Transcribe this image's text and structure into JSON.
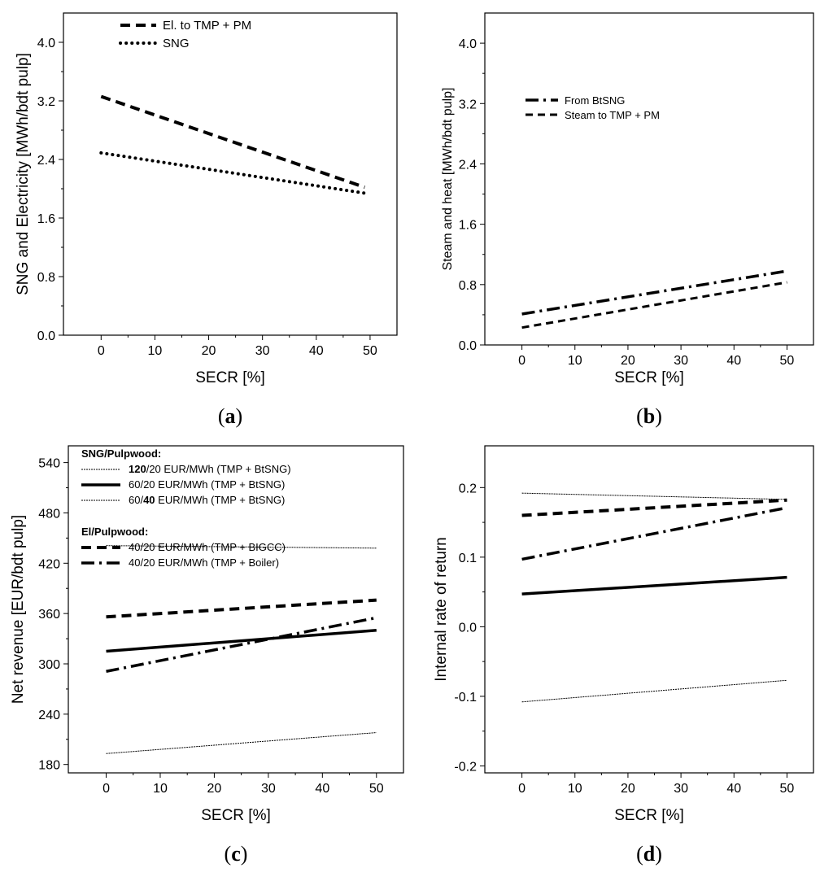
{
  "chart_data": [
    {
      "panel": "a",
      "type": "line",
      "panel_label": "(a)",
      "panel_label_letter": "a",
      "xlabel": "SECR [%]",
      "ylabel": "SNG and Electricity [MWh/bdt pulp]",
      "xlim": [
        -7,
        55
      ],
      "ylim": [
        0,
        4.4
      ],
      "xticks": [
        0,
        10,
        20,
        30,
        40,
        50
      ],
      "xtick_labels": [
        "0",
        "10",
        "20",
        "30",
        "40",
        "50"
      ],
      "yticks": [
        0,
        0.8,
        1.6,
        2.4,
        3.2,
        4.0
      ],
      "ytick_labels": [
        "0.0",
        "0.8",
        "1.6",
        "2.4",
        "3.2",
        "4.0"
      ],
      "legend_position": "top-left",
      "legend_headings": [],
      "series": [
        {
          "name": "El. to TMP + PM",
          "style": "dash-thick",
          "x": [
            0,
            49
          ],
          "y": [
            3.26,
            2.02
          ]
        },
        {
          "name": "SNG",
          "style": "dot-thick",
          "x": [
            0,
            49
          ],
          "y": [
            2.49,
            1.94
          ]
        }
      ]
    },
    {
      "panel": "b",
      "type": "line",
      "panel_label": "(b)",
      "panel_label_letter": "b",
      "xlabel": "SECR [%]",
      "ylabel": "Steam and heat [MWh/bdt pulp]",
      "xlim": [
        -7,
        55
      ],
      "ylim": [
        0,
        4.4
      ],
      "xticks": [
        0,
        10,
        20,
        30,
        40,
        50
      ],
      "xtick_labels": [
        "0",
        "10",
        "20",
        "30",
        "40",
        "50"
      ],
      "yticks": [
        0,
        0.8,
        1.6,
        2.4,
        3.2,
        4.0
      ],
      "ytick_labels": [
        "0.0",
        "0.8",
        "1.6",
        "2.4",
        "3.2",
        "4.0"
      ],
      "legend_position": "upper-left",
      "legend_headings": [],
      "series": [
        {
          "name": "From BtSNG",
          "style": "dashdot-thick",
          "x": [
            0,
            50
          ],
          "y": [
            0.41,
            0.98
          ]
        },
        {
          "name": "Steam to TMP + PM",
          "style": "dash-medium",
          "x": [
            0,
            50
          ],
          "y": [
            0.23,
            0.83
          ]
        }
      ]
    },
    {
      "panel": "c",
      "type": "line",
      "panel_label": "(c)",
      "panel_label_letter": "c",
      "xlabel": "SECR [%]",
      "ylabel": "Net revenue [EUR/bdt pulp]",
      "xlim": [
        -7,
        55
      ],
      "ylim": [
        170,
        560
      ],
      "xticks": [
        0,
        10,
        20,
        30,
        40,
        50
      ],
      "xtick_labels": [
        "0",
        "10",
        "20",
        "30",
        "40",
        "50"
      ],
      "yticks": [
        180,
        240,
        300,
        360,
        420,
        480,
        540
      ],
      "ytick_labels": [
        "180",
        "240",
        "300",
        "360",
        "420",
        "480",
        "540"
      ],
      "legend_position": "top-left",
      "legend_headings": [
        "SNG/Pulpwood:",
        "El/Pulpwood:"
      ],
      "series": [
        {
          "name": "120/20 EUR/MWh (TMP + BtSNG)",
          "name_bold": "120",
          "name_rest": "/20 EUR/MWh (TMP + BtSNG)",
          "style": "thin-dotted",
          "x": [
            0,
            50
          ],
          "y": [
            441,
            438
          ]
        },
        {
          "name": "60/20 EUR/MWh (TMP + BtSNG)",
          "style": "solid-thick",
          "x": [
            0,
            50
          ],
          "y": [
            315,
            340
          ]
        },
        {
          "name": "60/40 EUR/MWh (TMP + BtSNG)",
          "name_pre": "60/",
          "name_bold": "40",
          "name_rest": " EUR/MWh (TMP + BtSNG)",
          "style": "thin-dotted",
          "x": [
            0,
            50
          ],
          "y": [
            193,
            218
          ]
        },
        {
          "name": "40/20 EUR/MWh (TMP + BIGCC)",
          "style": "dash-thick",
          "x": [
            0,
            50
          ],
          "y": [
            356,
            376
          ]
        },
        {
          "name": "40/20 EUR/MWh (TMP + Boiler)",
          "style": "dashdot-thick",
          "x": [
            0,
            50
          ],
          "y": [
            291,
            355
          ]
        }
      ]
    },
    {
      "panel": "d",
      "type": "line",
      "panel_label": "(d)",
      "panel_label_letter": "d",
      "xlabel": "SECR [%]",
      "ylabel": "Internal rate of return",
      "xlim": [
        -7,
        55
      ],
      "ylim": [
        -0.21,
        0.26
      ],
      "xticks": [
        0,
        10,
        20,
        30,
        40,
        50
      ],
      "xtick_labels": [
        "0",
        "10",
        "20",
        "30",
        "40",
        "50"
      ],
      "yticks": [
        -0.2,
        -0.1,
        0.0,
        0.1,
        0.2
      ],
      "ytick_labels": [
        "-0.2",
        "-0.1",
        "0.0",
        "0.1",
        "0.2"
      ],
      "legend_position": "none",
      "legend_headings": [],
      "series": [
        {
          "name": "120/20 EUR/MWh (TMP + BtSNG)",
          "style": "thin-dotted",
          "x": [
            0,
            50
          ],
          "y": [
            0.192,
            0.183
          ]
        },
        {
          "name": "40/20 EUR/MWh (TMP + BIGCC)",
          "style": "dash-thick",
          "x": [
            0,
            50
          ],
          "y": [
            0.16,
            0.182
          ]
        },
        {
          "name": "40/20 EUR/MWh (TMP + Boiler)",
          "style": "dashdot-thick",
          "x": [
            0,
            50
          ],
          "y": [
            0.097,
            0.171
          ]
        },
        {
          "name": "60/20 EUR/MWh (TMP + BtSNG)",
          "style": "solid-thick",
          "x": [
            0,
            50
          ],
          "y": [
            0.047,
            0.071
          ]
        },
        {
          "name": "60/40 EUR/MWh (TMP + BtSNG)",
          "style": "thin-dotted",
          "x": [
            0,
            50
          ],
          "y": [
            -0.108,
            -0.077
          ]
        }
      ]
    }
  ]
}
